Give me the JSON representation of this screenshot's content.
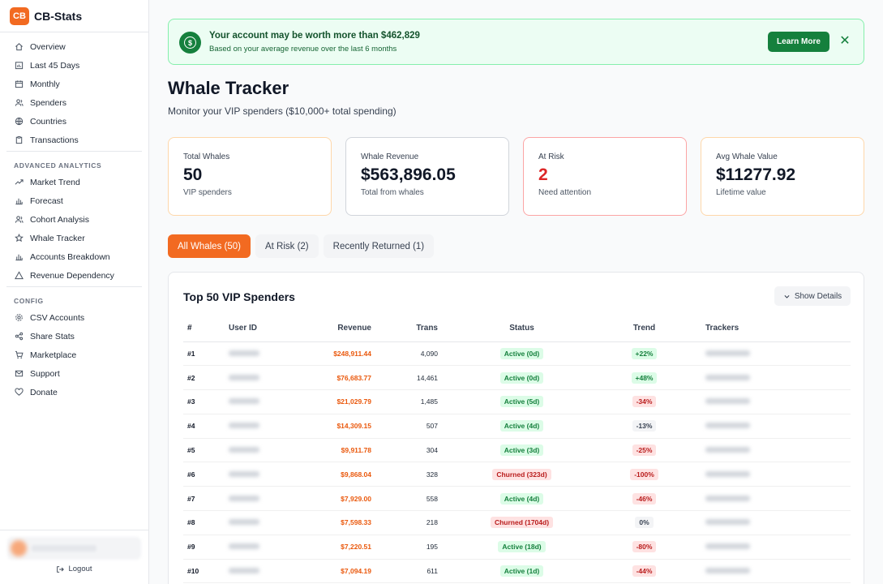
{
  "brand": {
    "logo": "CB",
    "name": "CB-Stats"
  },
  "nav_main": [
    {
      "label": "Overview",
      "icon": "home-icon"
    },
    {
      "label": "Last 45 Days",
      "icon": "calendar-chart-icon"
    },
    {
      "label": "Monthly",
      "icon": "calendar-icon"
    },
    {
      "label": "Spenders",
      "icon": "users-icon"
    },
    {
      "label": "Countries",
      "icon": "globe-icon"
    },
    {
      "label": "Transactions",
      "icon": "clipboard-icon"
    }
  ],
  "section_advanced": "ADVANCED ANALYTICS",
  "nav_advanced": [
    {
      "label": "Market Trend",
      "icon": "trend-icon"
    },
    {
      "label": "Forecast",
      "icon": "bar-chart-icon"
    },
    {
      "label": "Cohort Analysis",
      "icon": "users-icon"
    },
    {
      "label": "Whale Tracker",
      "icon": "star-icon"
    },
    {
      "label": "Accounts Breakdown",
      "icon": "bar-chart-icon"
    },
    {
      "label": "Revenue Dependency",
      "icon": "warning-icon"
    }
  ],
  "section_config": "CONFIG",
  "nav_config": [
    {
      "label": "CSV Accounts",
      "icon": "gear-icon"
    },
    {
      "label": "Share Stats",
      "icon": "share-icon"
    },
    {
      "label": "Marketplace",
      "icon": "cart-icon"
    },
    {
      "label": "Support",
      "icon": "mail-icon"
    },
    {
      "label": "Donate",
      "icon": "heart-icon"
    }
  ],
  "logout_label": "Logout",
  "banner": {
    "icon": "$",
    "title": "Your account may be worth more than $462,829",
    "subtitle": "Based on your average revenue over the last 6 months",
    "button": "Learn More",
    "close": "✕"
  },
  "page": {
    "title": "Whale Tracker",
    "subtitle": "Monitor your VIP spenders ($10,000+ total spending)"
  },
  "stats": [
    {
      "label": "Total Whales",
      "value": "50",
      "note": "VIP spenders"
    },
    {
      "label": "Whale Revenue",
      "value": "$563,896.05",
      "note": "Total from whales"
    },
    {
      "label": "At Risk",
      "value": "2",
      "note": "Need attention"
    },
    {
      "label": "Avg Whale Value",
      "value": "$11277.92",
      "note": "Lifetime value"
    }
  ],
  "tabs": [
    {
      "label": "All Whales (50)",
      "active": true
    },
    {
      "label": "At Risk (2)",
      "active": false
    },
    {
      "label": "Recently Returned (1)",
      "active": false
    }
  ],
  "table": {
    "title": "Top 50 VIP Spenders",
    "show_details": "Show Details",
    "columns": [
      "#",
      "User ID",
      "Revenue",
      "Trans",
      "Status",
      "Trend",
      "Trackers"
    ],
    "rows": [
      {
        "rank": "#1",
        "revenue": "$248,911.44",
        "trans": "4,090",
        "status": "Active (0d)",
        "status_type": "active",
        "trend": "+22%",
        "trend_type": "up"
      },
      {
        "rank": "#2",
        "revenue": "$76,683.77",
        "trans": "14,461",
        "status": "Active (0d)",
        "status_type": "active",
        "trend": "+48%",
        "trend_type": "up"
      },
      {
        "rank": "#3",
        "revenue": "$21,029.79",
        "trans": "1,485",
        "status": "Active (5d)",
        "status_type": "active",
        "trend": "-34%",
        "trend_type": "down"
      },
      {
        "rank": "#4",
        "revenue": "$14,309.15",
        "trans": "507",
        "status": "Active (4d)",
        "status_type": "active",
        "trend": "-13%",
        "trend_type": "flat"
      },
      {
        "rank": "#5",
        "revenue": "$9,911.78",
        "trans": "304",
        "status": "Active (3d)",
        "status_type": "active",
        "trend": "-25%",
        "trend_type": "down"
      },
      {
        "rank": "#6",
        "revenue": "$9,868.04",
        "trans": "328",
        "status": "Churned (323d)",
        "status_type": "churn",
        "trend": "-100%",
        "trend_type": "down"
      },
      {
        "rank": "#7",
        "revenue": "$7,929.00",
        "trans": "558",
        "status": "Active (4d)",
        "status_type": "active",
        "trend": "-46%",
        "trend_type": "down"
      },
      {
        "rank": "#8",
        "revenue": "$7,598.33",
        "trans": "218",
        "status": "Churned (1704d)",
        "status_type": "churn",
        "trend": "0%",
        "trend_type": "flat"
      },
      {
        "rank": "#9",
        "revenue": "$7,220.51",
        "trans": "195",
        "status": "Active (18d)",
        "status_type": "active",
        "trend": "-80%",
        "trend_type": "down"
      },
      {
        "rank": "#10",
        "revenue": "$7,094.19",
        "trans": "611",
        "status": "Active (1d)",
        "status_type": "active",
        "trend": "-44%",
        "trend_type": "down"
      }
    ]
  },
  "colors": {
    "accent": "#f26a21",
    "success": "#15803d",
    "danger": "#dc2626"
  }
}
